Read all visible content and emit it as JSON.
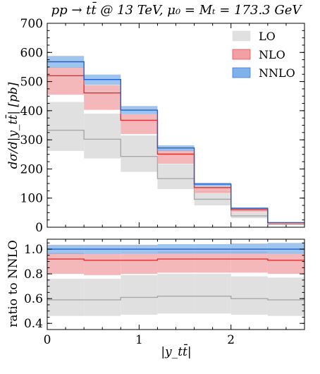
{
  "chart_data": {
    "type": "step-band",
    "title": "pp → tt̄ @ 13 TeV, μ₀ = Mₜ = 173.3 GeV",
    "xlabel": "|y_tt̄|",
    "x_tick_labels": [
      "0",
      "1",
      "2"
    ],
    "x_ticks": [
      0,
      1,
      2
    ],
    "xlim": [
      0,
      2.8
    ],
    "bin_edges": [
      0,
      0.4,
      0.8,
      1.2,
      1.6,
      2.0,
      2.4,
      2.8
    ],
    "legend_position": "top-right",
    "top_panel": {
      "ylabel": "dσ/d|y_tt̄| [pb]",
      "ylim": [
        0,
        700
      ],
      "y_ticks": [
        0,
        100,
        200,
        300,
        400,
        500,
        600,
        700
      ],
      "y_tick_labels": [
        "0",
        "100",
        "200",
        "300",
        "400",
        "500",
        "600",
        "700"
      ]
    },
    "bottom_panel": {
      "ylabel": "ratio to NNLO",
      "ylim": [
        0.35,
        1.08
      ],
      "y_ticks": [
        0.4,
        0.6,
        0.8,
        1.0
      ],
      "y_tick_labels": [
        "0.4",
        "0.6",
        "0.8",
        "1.0"
      ]
    },
    "series": [
      {
        "name": "LO",
        "fill": "#e0e0e0",
        "line": "#a8a8a8",
        "central": [
          333,
          302,
          243,
          167,
          96,
          39,
          10
        ],
        "lower": [
          262,
          236,
          190,
          131,
          75,
          31,
          8
        ],
        "upper": [
          430,
          390,
          315,
          217,
          125,
          51,
          13
        ],
        "ratio_central": [
          0.59,
          0.59,
          0.61,
          0.62,
          0.62,
          0.6,
          0.59
        ],
        "ratio_lower": [
          0.46,
          0.46,
          0.47,
          0.48,
          0.48,
          0.47,
          0.46
        ],
        "ratio_upper": [
          0.76,
          0.76,
          0.79,
          0.8,
          0.8,
          0.78,
          0.77
        ]
      },
      {
        "name": "NLO",
        "fill": "#f2a0a3",
        "line": "#e03030",
        "central": [
          520,
          461,
          367,
          251,
          136,
          60,
          15
        ],
        "lower": [
          455,
          403,
          320,
          218,
          118,
          52,
          13
        ],
        "upper": [
          550,
          488,
          388,
          266,
          144,
          64,
          16
        ],
        "ratio_central": [
          0.92,
          0.91,
          0.91,
          0.92,
          0.92,
          0.92,
          0.91
        ],
        "ratio_lower": [
          0.8,
          0.79,
          0.8,
          0.81,
          0.81,
          0.81,
          0.8
        ],
        "ratio_upper": [
          0.97,
          0.96,
          0.97,
          0.98,
          0.98,
          0.98,
          0.97
        ]
      },
      {
        "name": "NNLO",
        "fill": "#7fb2ea",
        "line": "#1f5fd0",
        "central": [
          568,
          507,
          402,
          272,
          148,
          65,
          16
        ],
        "lower": [
          548,
          489,
          388,
          262,
          143,
          63,
          15
        ],
        "upper": [
          588,
          524,
          416,
          281,
          153,
          68,
          17
        ],
        "ratio_central": [
          1.0,
          1.0,
          1.0,
          1.0,
          1.0,
          1.0,
          1.0
        ],
        "ratio_lower": [
          0.96,
          0.96,
          0.965,
          0.965,
          0.965,
          0.965,
          0.965
        ],
        "ratio_upper": [
          1.035,
          1.035,
          1.035,
          1.04,
          1.04,
          1.045,
          1.05
        ]
      }
    ]
  }
}
